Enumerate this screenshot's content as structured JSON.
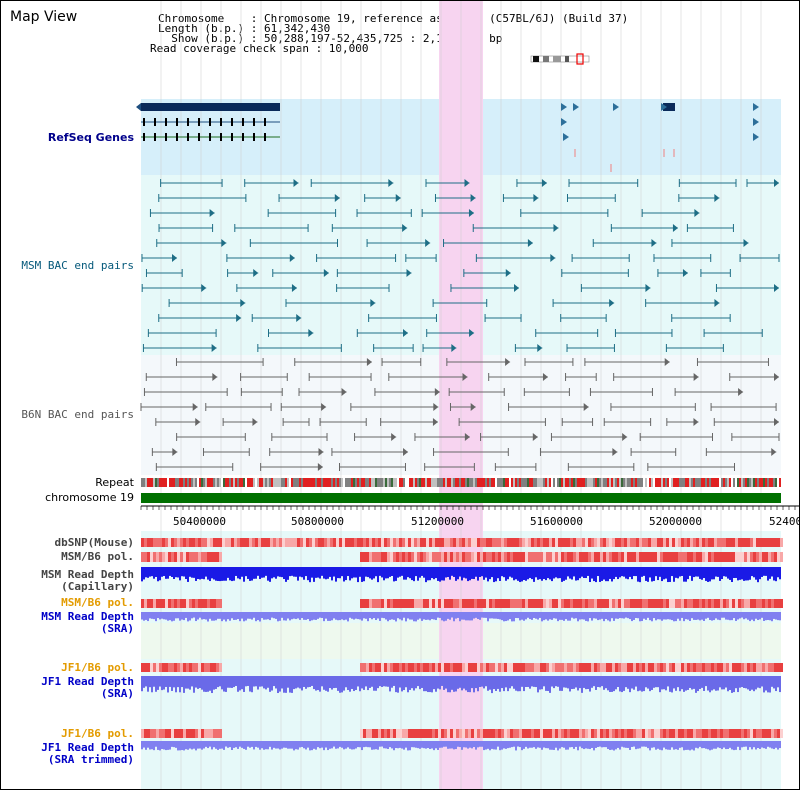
{
  "panel_title": "Map View",
  "info": {
    "chromosome_line": "Chromosome    : Chromosome 19, reference assembly (C57BL/6J) (Build 37)",
    "length_line": "Length (b.p.) : 61,342,430",
    "show_line": "  Show (b.p.) : 50,288,197-52,435,725 : 2,147,529 bp",
    "coverage_line": "Read coverage check span : 10,000"
  },
  "track_labels": {
    "refseq": "RefSeq Genes",
    "msm_bac": "MSM BAC end pairs",
    "b6n_bac": "B6N BAC end pairs",
    "repeat": "Repeat",
    "chromosome": "chromosome 19",
    "dbsnp": "dbSNP(Mouse)",
    "msm_b6_pol_1": "MSM/B6 pol.",
    "msm_depth_cap": "MSM Read Depth\n(Capillary)",
    "msm_b6_pol_2": "MSM/B6 pol.",
    "msm_depth_sra": "MSM Read Depth\n(SRA)",
    "jf1_b6_pol_1": "JF1/B6 pol.",
    "jf1_depth_sra": "JF1 Read Depth\n(SRA)",
    "jf1_b6_pol_2": "JF1/B6 pol.",
    "jf1_depth_trim": "JF1 Read Depth\n(SRA trimmed)"
  },
  "axis": {
    "ticks": [
      "50400000",
      "50800000",
      "51200000",
      "51600000",
      "52000000",
      "52400000"
    ]
  },
  "colors": {
    "highlight": "#f7d4f0",
    "refseq_bg": "#d6effa",
    "track_bg": "#e6f9f9",
    "chromosome_bar": "#007000",
    "depth_blue": "#1a1ae6",
    "depth_light": "#8080f0",
    "pol_red": "#e83030"
  },
  "icons": {
    "ideogram": "chromosome-ideogram-icon"
  }
}
